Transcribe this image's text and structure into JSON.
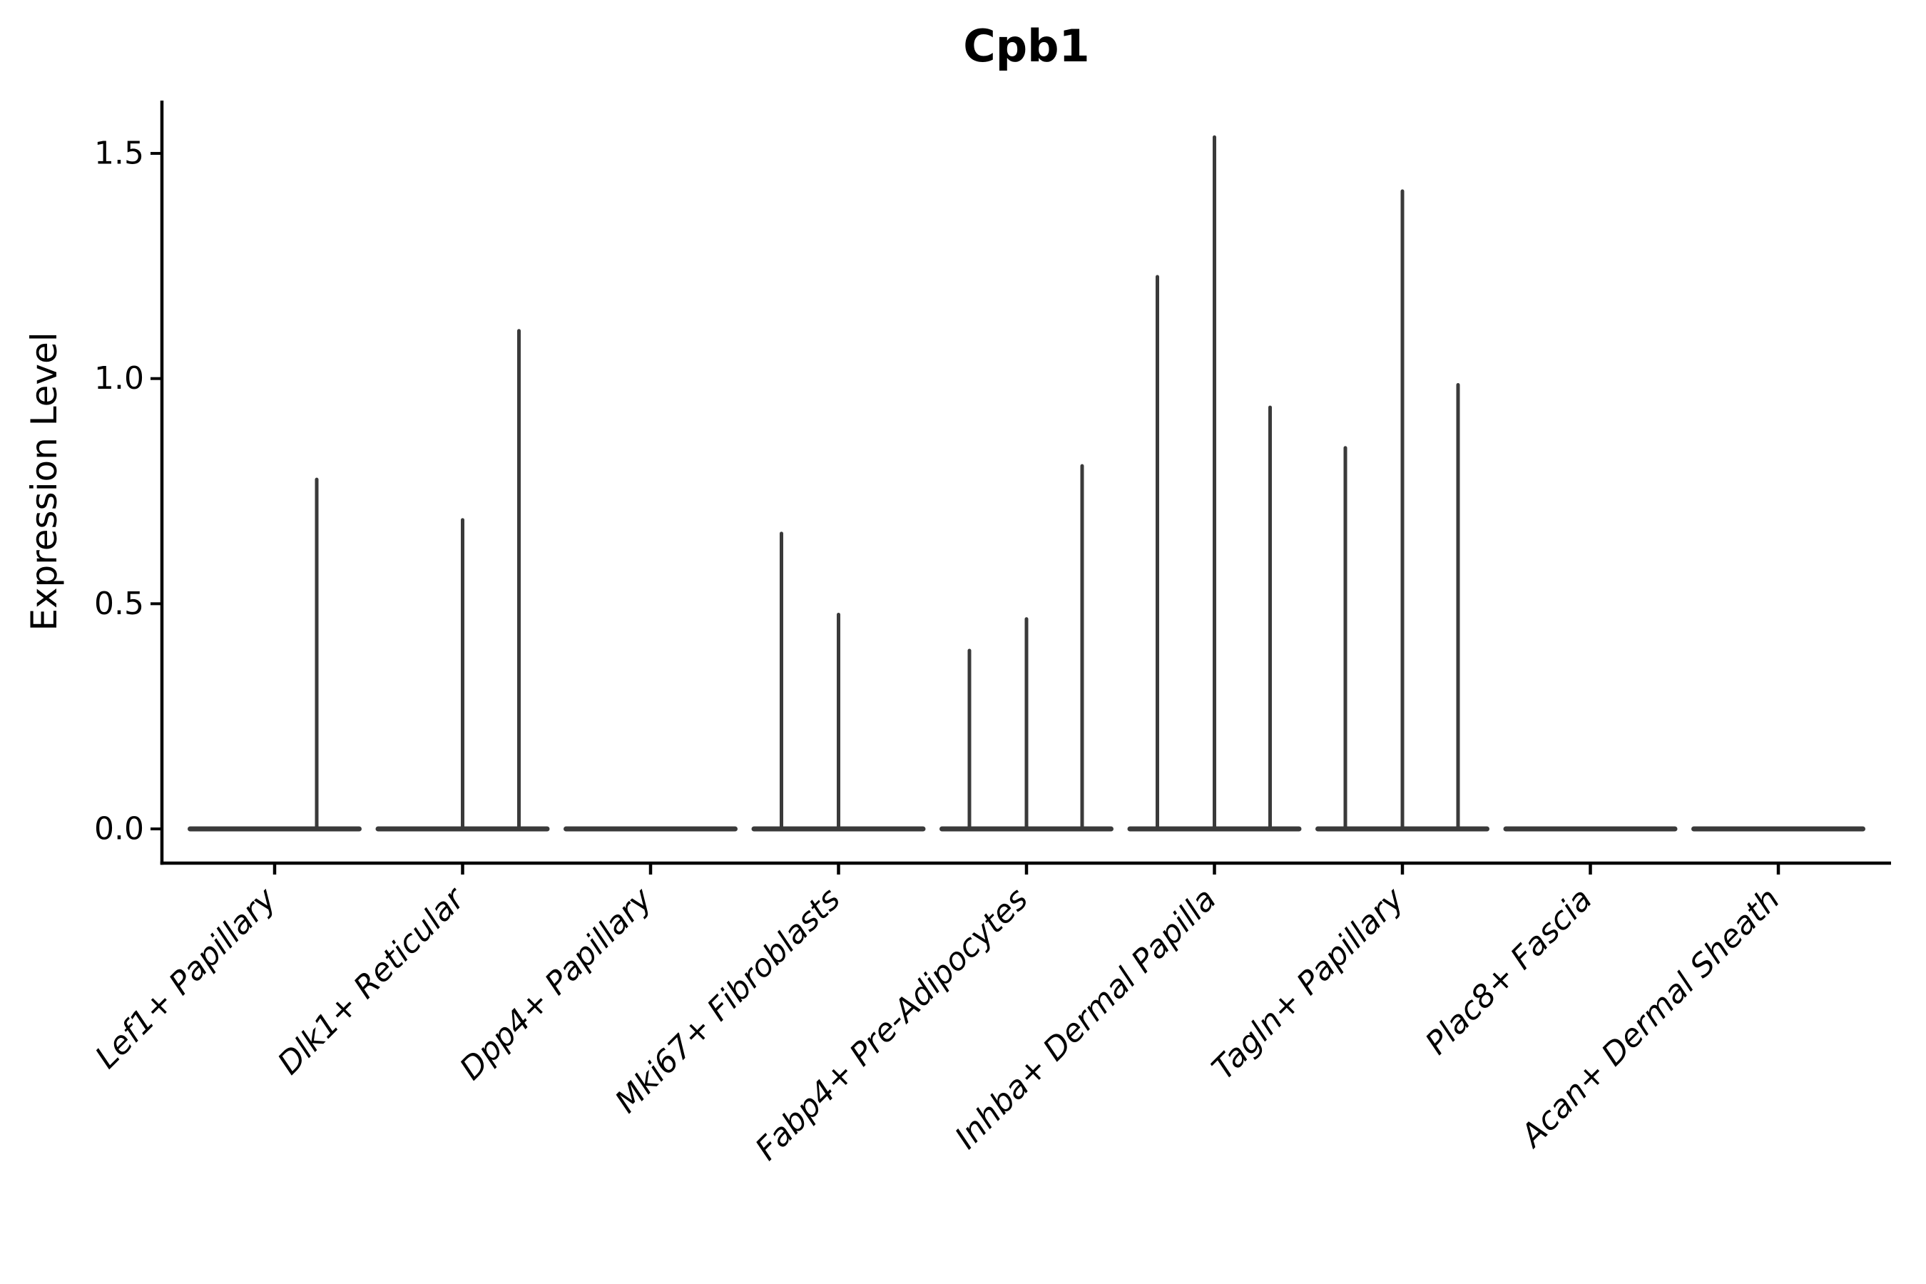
{
  "chart_data": {
    "type": "violin",
    "title": "Cpb1",
    "ylabel": "Expression Level",
    "xlabel": "",
    "background_color": "#ffffff",
    "violin_color": "#3a3a3a",
    "axis_color": "#000000",
    "grid": false,
    "legend": "none",
    "yticks": [
      0.0,
      0.5,
      1.0,
      1.5
    ],
    "ytick_labels": [
      "0.0",
      "0.5",
      "1.0",
      "1.5"
    ],
    "ylim": [
      -0.075,
      1.62
    ],
    "categories": [
      "Lef1+ Papillary",
      "Dlk1+ Reticular",
      "Dpp4+ Papillary",
      "Mki67+ Fibroblasts",
      "Fabp4+ Pre-Adipocytes",
      "Inhba+ Dermal Papilla",
      "Tagln+ Papillary",
      "Plac8+ Fascia",
      "Acan+ Dermal Sheath"
    ],
    "violins": [
      {
        "category": "Lef1+ Papillary",
        "baseline_value": 0,
        "spikes": [
          {
            "dx": 59,
            "max": 0.78
          }
        ]
      },
      {
        "category": "Dlk1+ Reticular",
        "baseline_value": 0,
        "spikes": [
          {
            "dx": 0,
            "max": 0.69
          },
          {
            "dx": 79,
            "max": 1.11
          }
        ]
      },
      {
        "category": "Dpp4+ Papillary",
        "baseline_value": 0,
        "spikes": []
      },
      {
        "category": "Mki67+ Fibroblasts",
        "baseline_value": 0,
        "spikes": [
          {
            "dx": -80,
            "max": 0.66
          },
          {
            "dx": 0,
            "max": 0.48
          }
        ]
      },
      {
        "category": "Fabp4+ Pre-Adipocytes",
        "baseline_value": 0,
        "spikes": [
          {
            "dx": -80,
            "max": 0.4
          },
          {
            "dx": 0,
            "max": 0.47
          },
          {
            "dx": 78,
            "max": 0.81
          }
        ]
      },
      {
        "category": "Inhba+ Dermal Papilla",
        "baseline_value": 0,
        "spikes": [
          {
            "dx": -80,
            "max": 1.23
          },
          {
            "dx": 0,
            "max": 1.54
          },
          {
            "dx": 78,
            "max": 0.94
          }
        ]
      },
      {
        "category": "Tagln+ Papillary",
        "baseline_value": 0,
        "spikes": [
          {
            "dx": -80,
            "max": 0.85
          },
          {
            "dx": 0,
            "max": 1.42
          },
          {
            "dx": 78,
            "max": 0.99
          }
        ]
      },
      {
        "category": "Plac8+ Fascia",
        "baseline_value": 0,
        "spikes": []
      },
      {
        "category": "Acan+ Dermal Sheath",
        "baseline_value": 0,
        "spikes": []
      }
    ]
  }
}
